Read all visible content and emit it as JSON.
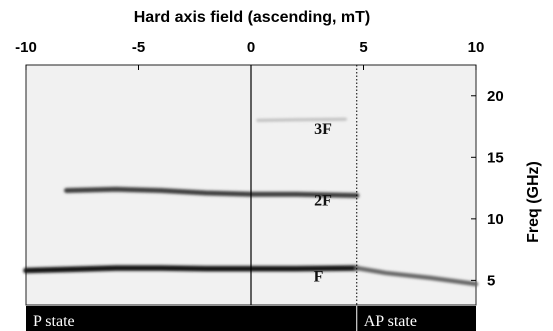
{
  "chart_data": {
    "type": "heatmap",
    "top_axis": {
      "label": "Hard axis field (ascending, mT)",
      "range": [
        -10,
        10
      ],
      "ticks": [
        -10,
        -5,
        0,
        5,
        10
      ],
      "tick_labels": [
        "-10",
        "-5",
        "0",
        "5",
        "10"
      ]
    },
    "right_axis": {
      "label": "Freq (GHz)",
      "range": [
        3,
        22.5
      ],
      "ticks": [
        5,
        10,
        15,
        20
      ],
      "tick_labels": [
        "5",
        "10",
        "15",
        "20"
      ]
    },
    "vertical_lines": [
      {
        "x": 0,
        "style": "solid"
      },
      {
        "x": 4.7,
        "style": "dotted"
      }
    ],
    "branches": [
      {
        "label": "F",
        "x": [
          -10,
          -8,
          -6,
          -4,
          -2,
          0,
          2,
          4.7
        ],
        "y": [
          5.8,
          5.9,
          6.0,
          6.0,
          5.95,
          5.95,
          5.95,
          6.0
        ],
        "intensity": 0.9
      },
      {
        "label": "2F",
        "x": [
          -8.2,
          -6,
          -4,
          -2,
          0,
          2,
          4.7
        ],
        "y": [
          12.3,
          12.4,
          12.3,
          12.1,
          12.0,
          12.0,
          11.9
        ],
        "intensity": 0.75
      },
      {
        "label": "3F",
        "x": [
          0.3,
          2,
          4.2
        ],
        "y": [
          18.0,
          18.05,
          18.1
        ],
        "intensity": 0.25
      },
      {
        "label": "",
        "x": [
          4.7,
          6,
          8,
          10
        ],
        "y": [
          6.0,
          5.6,
          5.2,
          4.7
        ],
        "intensity": 0.6
      }
    ],
    "mode_labels": [
      {
        "text": "3F",
        "x": 3.2,
        "y": 16.9
      },
      {
        "text": "2F",
        "x": 3.2,
        "y": 11.1
      },
      {
        "text": "F",
        "x": 3.0,
        "y": 4.9
      }
    ],
    "state_bar": [
      {
        "label": "P state",
        "from": -10,
        "to": 4.7
      },
      {
        "label": "AP state",
        "from": 4.7,
        "to": 10
      }
    ],
    "grid": false,
    "colormap": "grayscale (white = low, black = high)"
  }
}
